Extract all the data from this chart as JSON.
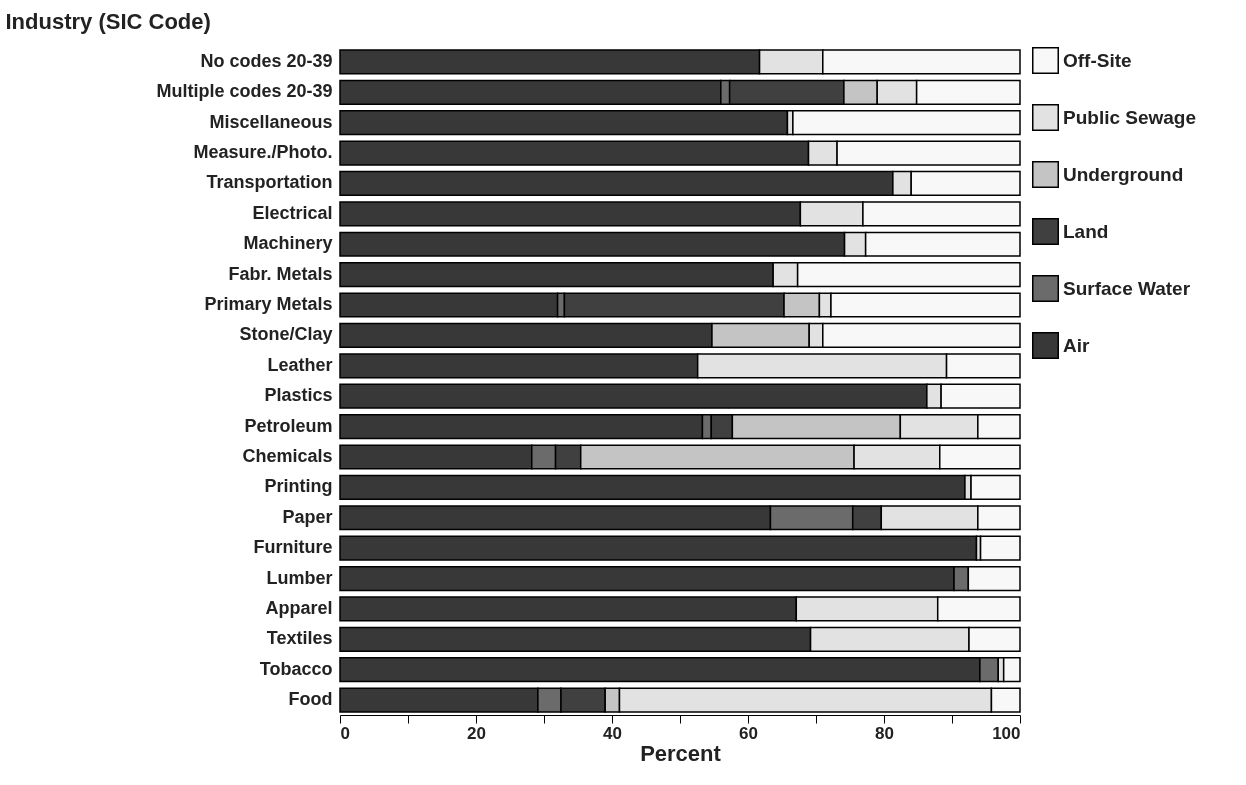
{
  "chart_data": {
    "type": "bar",
    "orientation": "horizontal",
    "stacked": true,
    "ylabel": "Industry (SIC Code)",
    "xlabel": "Percent",
    "categories": [
      "No codes 20-39",
      "Multiple codes 20-39",
      "Miscellaneous",
      "Measure./Photo.",
      "Transportation",
      "Electrical",
      "Machinery",
      "Fabr. Metals",
      "Primary Metals",
      "Stone/Clay",
      "Leather",
      "Plastics",
      "Petroleum",
      "Chemicals",
      "Printing",
      "Paper",
      "Furniture",
      "Lumber",
      "Apparel",
      "Textiles",
      "Tobacco",
      "Food"
    ],
    "series": [
      {
        "name": "Air",
        "color": "#383838",
        "values": [
          61.7,
          56,
          65.8,
          68.9,
          81.3,
          67.7,
          74.2,
          63.7,
          32,
          54.7,
          52.6,
          86.3,
          53.3,
          28.2,
          91.9,
          63.3,
          93.6,
          90.3,
          67.1,
          69.2,
          94.1,
          29.1
        ]
      },
      {
        "name": "Surface Water",
        "color": "#6b6b6b",
        "values": [
          null,
          1.3,
          null,
          null,
          null,
          null,
          null,
          null,
          1,
          null,
          null,
          null,
          1.3,
          3.5,
          null,
          12.1,
          null,
          2.1,
          null,
          null,
          2.7,
          3.4
        ]
      },
      {
        "name": "Land",
        "color": "#404040",
        "values": [
          null,
          16.8,
          null,
          null,
          null,
          null,
          null,
          null,
          32.3,
          null,
          null,
          null,
          3.1,
          3.7,
          null,
          4.2,
          null,
          null,
          null,
          null,
          null,
          6.5
        ]
      },
      {
        "name": "Underground",
        "color": "#c4c4c4",
        "values": [
          null,
          4.9,
          null,
          null,
          null,
          null,
          null,
          null,
          5.2,
          14.3,
          null,
          null,
          24.7,
          40.2,
          null,
          null,
          null,
          null,
          null,
          null,
          null,
          2.1
        ]
      },
      {
        "name": "Public Sewage",
        "color": "#e2e2e2",
        "values": [
          9.3,
          5.8,
          0.8,
          4.2,
          2.7,
          9.2,
          3.1,
          3.6,
          1.7,
          2.0,
          36.6,
          2.1,
          11.4,
          12.6,
          0.9,
          14.2,
          0.6,
          null,
          20.8,
          23.3,
          0.8,
          54.7
        ]
      },
      {
        "name": "Off-Site",
        "color": "#f8f8f8",
        "values": [
          29.0,
          15.2,
          33.4,
          26.9,
          16.0,
          23.1,
          22.7,
          32.7,
          27.8,
          29.0,
          10.8,
          11.6,
          6.2,
          11.8,
          7.2,
          6.2,
          5.8,
          7.6,
          12.1,
          7.5,
          2.4,
          4.2
        ]
      }
    ],
    "xlim": [
      0,
      100
    ],
    "xticks": [
      0,
      {
        "value": 10,
        "label": null
      },
      20,
      {
        "value": 30,
        "label": null
      },
      40,
      {
        "value": 50,
        "label": null
      },
      60,
      {
        "value": 70,
        "label": null
      },
      80,
      {
        "value": 90,
        "label": null
      },
      100
    ],
    "grid": false,
    "legend": "right"
  }
}
